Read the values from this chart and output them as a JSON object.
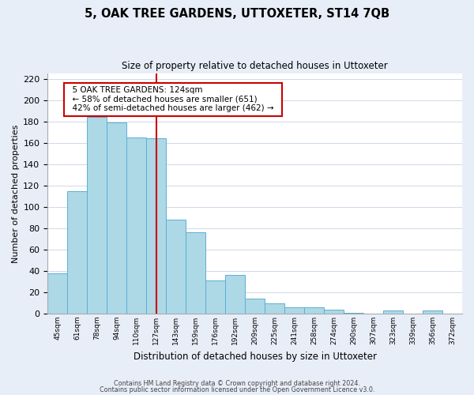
{
  "title": "5, OAK TREE GARDENS, UTTOXETER, ST14 7QB",
  "subtitle": "Size of property relative to detached houses in Uttoxeter",
  "xlabel": "Distribution of detached houses by size in Uttoxeter",
  "ylabel": "Number of detached properties",
  "bar_labels": [
    "45sqm",
    "61sqm",
    "78sqm",
    "94sqm",
    "110sqm",
    "127sqm",
    "143sqm",
    "159sqm",
    "176sqm",
    "192sqm",
    "209sqm",
    "225sqm",
    "241sqm",
    "258sqm",
    "274sqm",
    "290sqm",
    "307sqm",
    "323sqm",
    "339sqm",
    "356sqm",
    "372sqm"
  ],
  "bar_values": [
    38,
    115,
    184,
    179,
    165,
    164,
    88,
    76,
    31,
    36,
    14,
    10,
    6,
    6,
    4,
    1,
    0,
    3,
    0,
    3,
    0
  ],
  "bar_color": "#add8e6",
  "bar_edge_color": "#5bafd6",
  "vline_index": 5,
  "vline_color": "#cc0000",
  "annotation_title": "5 OAK TREE GARDENS: 124sqm",
  "annotation_line1": "← 58% of detached houses are smaller (651)",
  "annotation_line2": "42% of semi-detached houses are larger (462) →",
  "annotation_box_color": "#ffffff",
  "annotation_box_edge": "#cc0000",
  "ylim": [
    0,
    225
  ],
  "yticks": [
    0,
    20,
    40,
    60,
    80,
    100,
    120,
    140,
    160,
    180,
    200,
    220
  ],
  "footer1": "Contains HM Land Registry data © Crown copyright and database right 2024.",
  "footer2": "Contains public sector information licensed under the Open Government Licence v3.0.",
  "background_color": "#e8eef8",
  "plot_bg_color": "#ffffff"
}
